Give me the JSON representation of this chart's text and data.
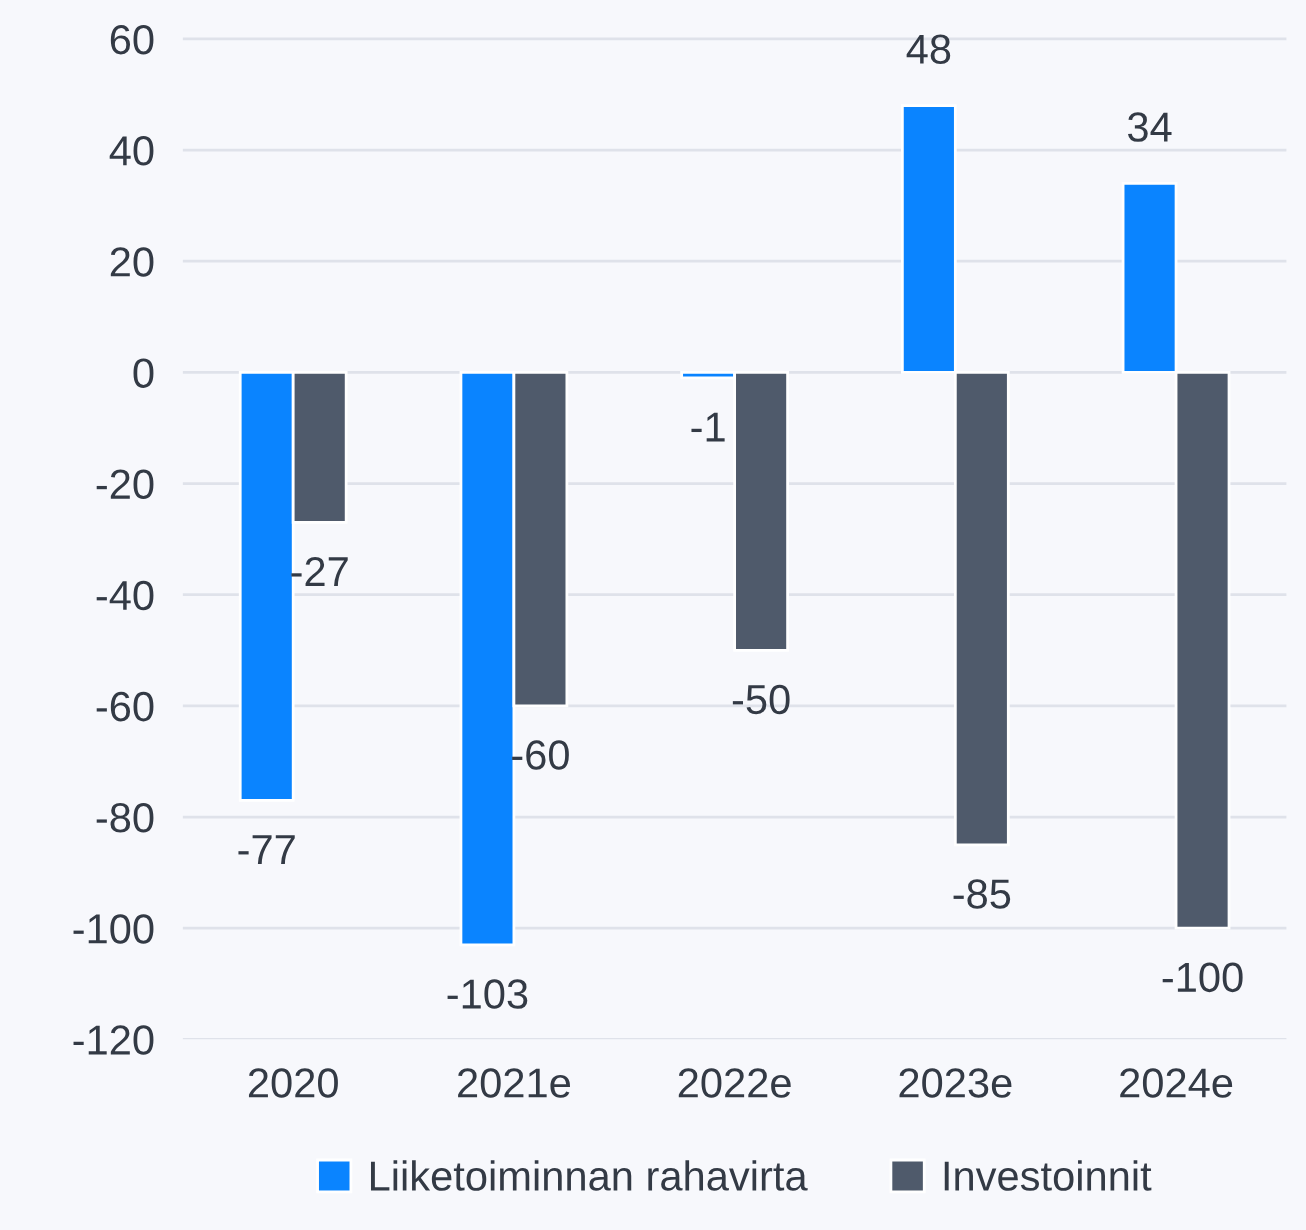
{
  "chart_data": {
    "type": "bar",
    "categories": [
      "2020",
      "2021e",
      "2022e",
      "2023e",
      "2024e"
    ],
    "series": [
      {
        "name": "Liiketoiminnan rahavirta",
        "color": "#0a84ff",
        "values": [
          -77,
          -103,
          -1,
          48,
          34
        ]
      },
      {
        "name": "Investoinnit",
        "color": "#4f5a6b",
        "values": [
          -27,
          -60,
          -50,
          -85,
          -100
        ]
      }
    ],
    "ylim": [
      -120,
      67
    ],
    "yticks": [
      -120,
      -100,
      -80,
      -60,
      -40,
      -20,
      0,
      20,
      40,
      60
    ],
    "grid": "y",
    "legend": "bottom",
    "data_labels": true
  }
}
